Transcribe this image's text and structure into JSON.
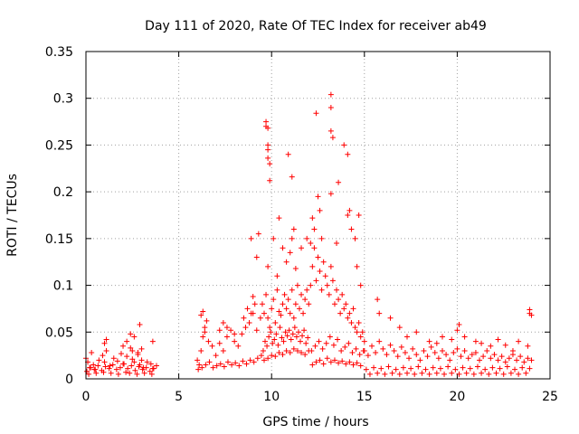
{
  "chart_data": {
    "type": "scatter",
    "title": "Day 111 of 2020, Rate Of TEC Index for receiver ab49",
    "xlabel": "GPS time / hours",
    "ylabel": "ROTI / TECUs",
    "xlim": [
      0,
      25
    ],
    "ylim": [
      0,
      0.35
    ],
    "x_ticks": [
      0,
      5,
      10,
      15,
      20,
      25
    ],
    "x_tick_labels": [
      "0",
      "5",
      "10",
      "15",
      "20",
      "25"
    ],
    "y_ticks": [
      0,
      0.05,
      0.1,
      0.15,
      0.2,
      0.25,
      0.3,
      0.35
    ],
    "y_tick_labels": [
      "0",
      "0.05",
      "0.1",
      "0.15",
      "0.2",
      "0.25",
      "0.3",
      "0.35"
    ],
    "grid": true,
    "marker": "plus",
    "color": "#ff0000",
    "series": [
      {
        "x": [
          0.0,
          0.1,
          0.2,
          0.3,
          0.4,
          0.5,
          0.7,
          0.9,
          1.0,
          1.1,
          1.3,
          1.5,
          1.7,
          1.9,
          2.0,
          2.2,
          2.4,
          2.5,
          2.6,
          2.8,
          2.9,
          3.0,
          3.1,
          3.3,
          3.5,
          3.6,
          3.8,
          0.05,
          0.25,
          0.45,
          0.65,
          0.85,
          1.05,
          1.25,
          1.45,
          1.65,
          1.85,
          2.05,
          2.25,
          2.45,
          2.65,
          2.85,
          3.05,
          3.25,
          3.45,
          3.65,
          0.15,
          0.55,
          0.95,
          1.35,
          1.75,
          2.15,
          2.35,
          2.75,
          3.15,
          3.55,
          1.0,
          1.1,
          2.0,
          2.2,
          2.4,
          2.5,
          2.6,
          2.9,
          3.0,
          2.8,
          3.6,
          6.0,
          6.1,
          6.2,
          6.3,
          6.4,
          6.5,
          6.6,
          6.8,
          7.0,
          7.2,
          7.4,
          7.6,
          7.8,
          8.0,
          8.2,
          8.4,
          8.6,
          8.8,
          9.0,
          9.2,
          9.4,
          6.05,
          6.25,
          6.45,
          6.65,
          6.85,
          7.05,
          7.25,
          7.45,
          7.65,
          7.85,
          8.05,
          8.25,
          8.45,
          8.65,
          8.85,
          9.05,
          9.25,
          9.45,
          6.2,
          6.3,
          6.4,
          7.2,
          7.4,
          7.6,
          8.0,
          8.5,
          8.7,
          8.9,
          9.0,
          9.1,
          9.5,
          9.6,
          9.7,
          9.8,
          9.9,
          10.0,
          10.1,
          10.2,
          10.3,
          10.4,
          10.5,
          10.6,
          10.7,
          10.8,
          10.9,
          11.0,
          11.1,
          11.2,
          11.3,
          11.4,
          11.5,
          11.6,
          11.7,
          11.8,
          11.9,
          12.0,
          9.55,
          9.65,
          9.75,
          9.85,
          9.95,
          10.05,
          10.15,
          10.25,
          10.35,
          10.45,
          10.55,
          10.65,
          10.75,
          10.85,
          10.95,
          11.05,
          11.15,
          11.25,
          11.35,
          11.45,
          11.55,
          11.65,
          11.75,
          11.85,
          11.95,
          9.6,
          9.8,
          10.0,
          10.2,
          10.4,
          10.6,
          10.8,
          11.0,
          11.2,
          11.4,
          11.6,
          11.8,
          12.0,
          9.7,
          9.8,
          9.8,
          9.8,
          9.9,
          9.9,
          9.7,
          9.8,
          10.1,
          10.4,
          10.6,
          11.1,
          11.2,
          11.1,
          10.9,
          9.3,
          8.9,
          9.2,
          9.8,
          10.3,
          10.8,
          11.0,
          11.3,
          11.6,
          11.9,
          12.1,
          12.2,
          12.3,
          12.4,
          12.5,
          12.6,
          12.7,
          12.8,
          12.9,
          13.0,
          13.1,
          13.2,
          13.3,
          13.4,
          13.5,
          13.6,
          13.7,
          13.8,
          13.9,
          14.0,
          14.1,
          14.2,
          14.3,
          14.4,
          14.5,
          14.6,
          14.7,
          14.8,
          14.9,
          15.0,
          12.15,
          12.35,
          12.55,
          12.75,
          12.95,
          13.15,
          13.35,
          13.55,
          13.75,
          13.95,
          14.15,
          14.35,
          14.55,
          14.75,
          14.95,
          12.2,
          12.4,
          12.6,
          12.8,
          13.0,
          13.2,
          13.4,
          13.6,
          13.8,
          14.0,
          14.2,
          14.4,
          14.6,
          14.8,
          12.2,
          12.5,
          12.3,
          12.6,
          13.2,
          13.2,
          13.2,
          13.3,
          13.2,
          13.6,
          13.9,
          14.1,
          14.2,
          14.1,
          14.3,
          14.5,
          14.7,
          13.5,
          12.7,
          12.4,
          12.1,
          14.6,
          14.8,
          15.0,
          15.2,
          15.4,
          15.6,
          15.8,
          16.0,
          16.2,
          16.4,
          16.6,
          16.8,
          17.0,
          17.2,
          17.4,
          17.6,
          17.8,
          18.0,
          18.2,
          18.4,
          18.6,
          18.8,
          19.0,
          19.2,
          19.4,
          19.6,
          19.8,
          20.0,
          20.2,
          20.4,
          20.6,
          20.8,
          21.0,
          21.2,
          21.4,
          21.6,
          21.8,
          22.0,
          22.2,
          22.4,
          22.6,
          22.8,
          23.0,
          23.2,
          23.4,
          23.6,
          23.8,
          24.0,
          15.1,
          15.5,
          15.9,
          16.3,
          16.7,
          17.1,
          17.5,
          17.9,
          18.3,
          18.7,
          19.1,
          19.5,
          19.9,
          20.3,
          20.7,
          21.1,
          21.5,
          21.9,
          22.3,
          22.7,
          23.1,
          23.5,
          23.9,
          15.3,
          15.7,
          16.1,
          16.5,
          16.9,
          17.3,
          17.7,
          18.1,
          18.5,
          18.9,
          19.3,
          19.7,
          20.1,
          20.5,
          20.9,
          21.3,
          21.7,
          22.1,
          22.5,
          22.9,
          23.3,
          23.7,
          15.7,
          15.8,
          16.4,
          16.9,
          17.3,
          17.8,
          18.5,
          18.9,
          19.2,
          19.7,
          20.1,
          20.0,
          20.4,
          21.0,
          21.3,
          21.8,
          22.2,
          22.6,
          23.0,
          23.3,
          23.8,
          23.9,
          24.0,
          23.9
        ],
        "y": [
          0.022,
          0.018,
          0.012,
          0.028,
          0.015,
          0.01,
          0.02,
          0.025,
          0.018,
          0.03,
          0.014,
          0.022,
          0.019,
          0.027,
          0.016,
          0.024,
          0.033,
          0.021,
          0.018,
          0.026,
          0.015,
          0.02,
          0.012,
          0.018,
          0.016,
          0.011,
          0.014,
          0.008,
          0.012,
          0.01,
          0.014,
          0.009,
          0.013,
          0.011,
          0.015,
          0.01,
          0.012,
          0.016,
          0.011,
          0.014,
          0.009,
          0.013,
          0.01,
          0.012,
          0.008,
          0.011,
          0.005,
          0.006,
          0.007,
          0.006,
          0.005,
          0.007,
          0.006,
          0.005,
          0.006,
          0.005,
          0.038,
          0.042,
          0.035,
          0.04,
          0.048,
          0.03,
          0.045,
          0.058,
          0.032,
          0.028,
          0.04,
          0.02,
          0.015,
          0.03,
          0.045,
          0.055,
          0.062,
          0.04,
          0.035,
          0.025,
          0.038,
          0.03,
          0.045,
          0.052,
          0.04,
          0.035,
          0.048,
          0.055,
          0.06,
          0.07,
          0.052,
          0.065,
          0.01,
          0.012,
          0.015,
          0.018,
          0.012,
          0.014,
          0.016,
          0.013,
          0.018,
          0.015,
          0.017,
          0.014,
          0.019,
          0.016,
          0.02,
          0.018,
          0.022,
          0.025,
          0.068,
          0.072,
          0.05,
          0.052,
          0.06,
          0.055,
          0.048,
          0.065,
          0.075,
          0.07,
          0.088,
          0.08,
          0.08,
          0.07,
          0.09,
          0.065,
          0.055,
          0.075,
          0.085,
          0.06,
          0.095,
          0.072,
          0.068,
          0.08,
          0.09,
          0.075,
          0.085,
          0.07,
          0.095,
          0.065,
          0.08,
          0.1,
          0.075,
          0.09,
          0.07,
          0.085,
          0.095,
          0.08,
          0.03,
          0.04,
          0.035,
          0.045,
          0.05,
          0.038,
          0.042,
          0.048,
          0.036,
          0.055,
          0.044,
          0.04,
          0.05,
          0.046,
          0.052,
          0.042,
          0.048,
          0.055,
          0.045,
          0.05,
          0.04,
          0.046,
          0.052,
          0.038,
          0.044,
          0.02,
          0.022,
          0.025,
          0.024,
          0.028,
          0.026,
          0.03,
          0.028,
          0.032,
          0.03,
          0.028,
          0.026,
          0.03,
          0.275,
          0.268,
          0.25,
          0.236,
          0.212,
          0.23,
          0.27,
          0.245,
          0.15,
          0.172,
          0.14,
          0.15,
          0.16,
          0.216,
          0.24,
          0.155,
          0.15,
          0.13,
          0.12,
          0.11,
          0.125,
          0.135,
          0.118,
          0.14,
          0.15,
          0.1,
          0.12,
          0.14,
          0.105,
          0.13,
          0.115,
          0.095,
          0.125,
          0.11,
          0.1,
          0.09,
          0.12,
          0.105,
          0.08,
          0.095,
          0.085,
          0.07,
          0.09,
          0.075,
          0.08,
          0.065,
          0.07,
          0.06,
          0.075,
          0.055,
          0.05,
          0.06,
          0.045,
          0.05,
          0.04,
          0.03,
          0.035,
          0.04,
          0.032,
          0.038,
          0.045,
          0.036,
          0.042,
          0.03,
          0.034,
          0.038,
          0.028,
          0.032,
          0.026,
          0.03,
          0.015,
          0.018,
          0.02,
          0.016,
          0.022,
          0.018,
          0.02,
          0.017,
          0.019,
          0.016,
          0.018,
          0.015,
          0.017,
          0.014,
          0.172,
          0.195,
          0.16,
          0.18,
          0.304,
          0.29,
          0.265,
          0.258,
          0.198,
          0.21,
          0.25,
          0.24,
          0.18,
          0.175,
          0.16,
          0.15,
          0.175,
          0.145,
          0.15,
          0.284,
          0.145,
          0.12,
          0.1,
          0.03,
          0.025,
          0.035,
          0.028,
          0.04,
          0.032,
          0.026,
          0.036,
          0.03,
          0.024,
          0.034,
          0.028,
          0.022,
          0.032,
          0.026,
          0.02,
          0.03,
          0.024,
          0.034,
          0.028,
          0.022,
          0.03,
          0.026,
          0.02,
          0.028,
          0.032,
          0.024,
          0.03,
          0.022,
          0.026,
          0.028,
          0.02,
          0.024,
          0.03,
          0.022,
          0.026,
          0.02,
          0.024,
          0.018,
          0.022,
          0.026,
          0.02,
          0.024,
          0.018,
          0.022,
          0.02,
          0.01,
          0.012,
          0.011,
          0.013,
          0.01,
          0.012,
          0.011,
          0.013,
          0.01,
          0.012,
          0.011,
          0.013,
          0.01,
          0.012,
          0.011,
          0.013,
          0.01,
          0.012,
          0.011,
          0.013,
          0.01,
          0.012,
          0.011,
          0.005,
          0.006,
          0.005,
          0.006,
          0.005,
          0.006,
          0.005,
          0.006,
          0.005,
          0.006,
          0.005,
          0.006,
          0.005,
          0.006,
          0.005,
          0.006,
          0.005,
          0.006,
          0.005,
          0.006,
          0.005,
          0.006,
          0.085,
          0.07,
          0.065,
          0.055,
          0.045,
          0.05,
          0.04,
          0.038,
          0.045,
          0.042,
          0.058,
          0.052,
          0.045,
          0.04,
          0.038,
          0.035,
          0.042,
          0.036,
          0.03,
          0.04,
          0.035,
          0.074,
          0.068,
          0.07
        ]
      }
    ]
  }
}
